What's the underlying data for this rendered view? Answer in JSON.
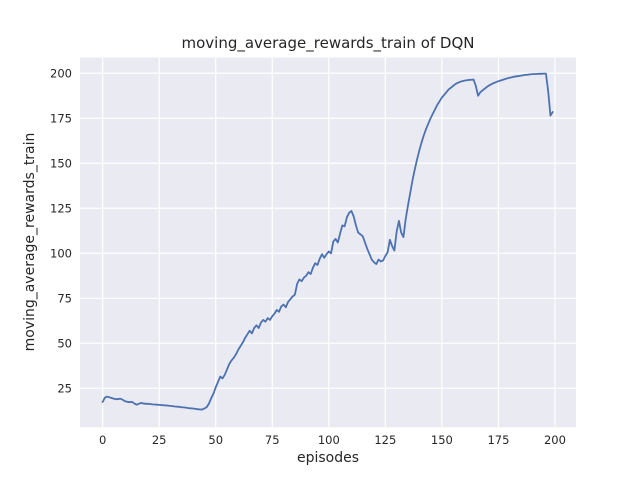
{
  "figure": {
    "title": "moving_average_rewards_train of DQN",
    "xlabel": "episodes",
    "ylabel": "moving_average_rewards_train"
  },
  "chart_data": {
    "type": "line",
    "title": "moving_average_rewards_train of DQN",
    "xlabel": "episodes",
    "ylabel": "moving_average_rewards_train",
    "x_ticks": [
      0,
      25,
      50,
      75,
      100,
      125,
      150,
      175,
      200
    ],
    "y_ticks": [
      25,
      50,
      75,
      100,
      125,
      150,
      175,
      200
    ],
    "xlim": [
      -10,
      209.3
    ],
    "ylim": [
      3.4,
      208.7
    ],
    "grid": true,
    "legend": false,
    "style": {
      "figure_bg": "#ffffff",
      "axes_bg": "#eaeaf2",
      "grid_color": "#ffffff",
      "line_color": "#4c72b0",
      "text_color": "#262626"
    },
    "series": [
      {
        "name": "moving_average_rewards_train",
        "x_start": 0,
        "x_step": 1,
        "values": [
          17.4,
          19.8,
          20.4,
          20.0,
          19.6,
          19.2,
          18.9,
          19.1,
          19.2,
          18.5,
          17.8,
          17.5,
          17.3,
          17.5,
          16.6,
          15.9,
          16.4,
          16.9,
          16.6,
          16.4,
          16.4,
          16.3,
          16.1,
          16.0,
          15.9,
          15.8,
          15.7,
          15.6,
          15.5,
          15.4,
          15.2,
          15.1,
          14.9,
          14.8,
          14.7,
          14.5,
          14.4,
          14.2,
          14.0,
          13.9,
          13.8,
          13.6,
          13.4,
          13.3,
          13.2,
          13.8,
          14.5,
          16.5,
          19.5,
          22.0,
          25.5,
          28.5,
          31.5,
          30.5,
          32.5,
          35.5,
          38.5,
          40.5,
          42.0,
          44.0,
          46.5,
          48.5,
          50.5,
          53.0,
          55.0,
          57.0,
          55.5,
          58.5,
          60.0,
          58.5,
          61.5,
          63.0,
          62.0,
          64.0,
          63.0,
          65.0,
          66.5,
          68.5,
          67.5,
          70.5,
          71.5,
          70.0,
          73.0,
          74.5,
          76.0,
          77.0,
          83.0,
          85.5,
          84.5,
          86.5,
          87.5,
          89.5,
          88.5,
          92.0,
          94.5,
          93.5,
          97.0,
          99.5,
          97.5,
          99.5,
          101.0,
          100.0,
          106.5,
          108.0,
          106.0,
          111.0,
          115.5,
          115.0,
          120.0,
          122.5,
          123.5,
          120.5,
          115.5,
          111.5,
          110.5,
          109.5,
          106.0,
          102.5,
          99.5,
          96.5,
          95.0,
          94.0,
          96.5,
          95.5,
          96.0,
          98.5,
          100.5,
          107.5,
          104.0,
          101.5,
          112.0,
          118.0,
          111.5,
          109.0,
          119.0,
          126.5,
          133.5,
          140.5,
          146.5,
          152.0,
          157.0,
          161.5,
          165.5,
          169.0,
          172.0,
          175.0,
          177.5,
          180.0,
          182.5,
          184.5,
          186.5,
          188.0,
          189.5,
          191.0,
          192.0,
          193.0,
          194.0,
          194.7,
          195.2,
          195.6,
          195.9,
          196.1,
          196.3,
          196.4,
          196.5,
          193.0,
          187.5,
          189.5,
          190.5,
          191.5,
          192.5,
          193.3,
          194.0,
          194.6,
          195.1,
          195.6,
          196.0,
          196.4,
          196.8,
          197.2,
          197.5,
          197.8,
          198.1,
          198.3,
          198.5,
          198.7,
          198.9,
          199.1,
          199.2,
          199.4,
          199.5,
          199.6,
          199.6,
          199.7,
          199.7,
          199.8,
          199.8,
          190.0,
          176.5,
          178.5
        ]
      }
    ]
  }
}
